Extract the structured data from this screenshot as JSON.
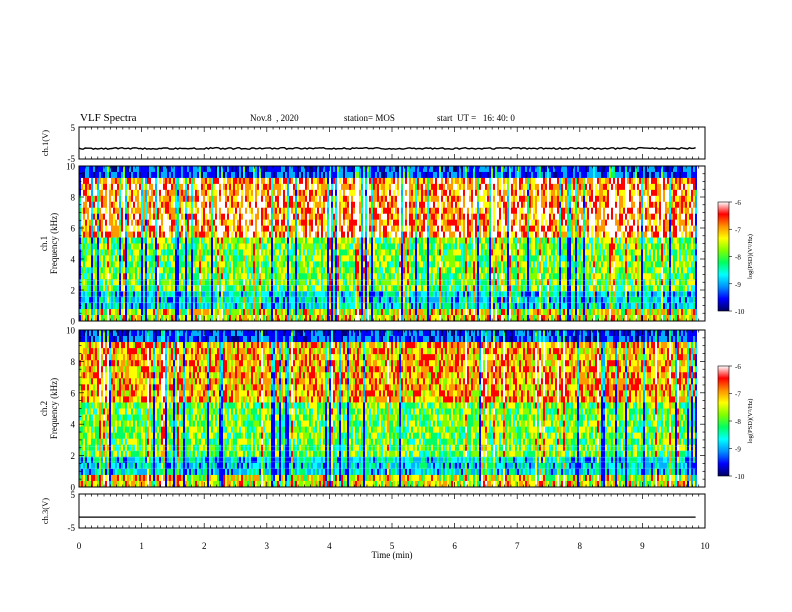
{
  "header": {
    "title": "VLF Spectra",
    "date": "Nov.8  , 2020",
    "station": "station= MOS",
    "start": "start  UT =   16: 40: 0"
  },
  "colors": {
    "colormap": [
      "#000080",
      "#0000ff",
      "#00b0ff",
      "#00ffff",
      "#00ff66",
      "#80ff00",
      "#ffff00",
      "#ff9900",
      "#ff0000",
      "#ffffff"
    ],
    "trace": "#000000"
  },
  "chart_data": [
    {
      "type": "line",
      "panel": "channel-1-waveform",
      "ylabel": "ch.1(V)",
      "ylim": [
        -5,
        5
      ],
      "yticks": [
        "5",
        "-5"
      ],
      "x": [
        0,
        9.85
      ],
      "y": [
        -1.7,
        -1.7
      ]
    },
    {
      "type": "heatmap",
      "panel": "channel-1-spectrogram",
      "ylabel_line1": "ch.1",
      "ylabel_line2": "Frequency (kHz)",
      "ylim": [
        0,
        10
      ],
      "yticks": [
        "0",
        "2",
        "4",
        "6",
        "8",
        "10"
      ],
      "x_range_min": [
        0,
        9.85
      ],
      "colorbar": {
        "label": "log(PSD)(V²/Hz)",
        "ticks": [
          "-6",
          "-7",
          "-8",
          "-9",
          "-10"
        ],
        "range": [
          -10,
          -6
        ]
      }
    },
    {
      "type": "heatmap",
      "panel": "channel-2-spectrogram",
      "ylabel_line1": "ch.2",
      "ylabel_line2": "Frequency (kHz)",
      "ylim": [
        0,
        10
      ],
      "yticks": [
        "0",
        "2",
        "4",
        "6",
        "8",
        "10"
      ],
      "x_range_min": [
        0,
        9.85
      ],
      "colorbar": {
        "label": "log(PSD)(V²/Hz)",
        "ticks": [
          "-6",
          "-7",
          "-8",
          "-9",
          "-10"
        ],
        "range": [
          -10,
          -6
        ]
      }
    },
    {
      "type": "line",
      "panel": "channel-3-waveform",
      "ylabel": "ch.3(V)",
      "ylim": [
        -5,
        5
      ],
      "yticks": [
        "5",
        "-5"
      ],
      "x": [
        0,
        9.85
      ],
      "y": [
        -1.8,
        -1.8
      ]
    }
  ],
  "xaxis": {
    "label": "Time (min)",
    "ticks": [
      "0",
      "1",
      "2",
      "3",
      "4",
      "5",
      "6",
      "7",
      "8",
      "9",
      "10"
    ],
    "range": [
      0,
      10
    ]
  }
}
